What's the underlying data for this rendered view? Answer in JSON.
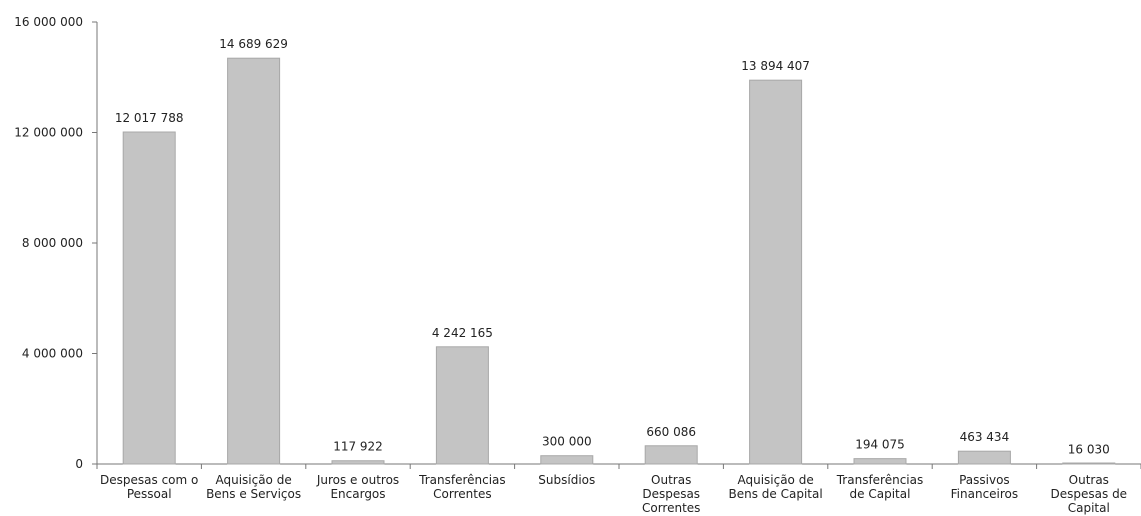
{
  "chart_data": {
    "type": "bar",
    "title": "",
    "xlabel": "",
    "ylabel": "",
    "ylim": [
      0,
      16000000
    ],
    "yticks": [
      {
        "value": 0,
        "label": "0"
      },
      {
        "value": 4000000,
        "label": "4 000 000"
      },
      {
        "value": 8000000,
        "label": "8 000 000"
      },
      {
        "value": 12000000,
        "label": "12 000 000"
      },
      {
        "value": 16000000,
        "label": "16 000 000"
      }
    ],
    "categories": [
      [
        "Despesas com o",
        "Pessoal"
      ],
      [
        "Aquisição de",
        "Bens e Serviços"
      ],
      [
        "Juros e outros",
        "Encargos"
      ],
      [
        "Transferências",
        "Correntes"
      ],
      [
        "Subsídios"
      ],
      [
        "Outras",
        "Despesas",
        "Correntes"
      ],
      [
        "Aquisição de",
        "Bens de Capital"
      ],
      [
        "Transferências",
        "de Capital"
      ],
      [
        "Passivos",
        "Financeiros"
      ],
      [
        "Outras",
        "Despesas de",
        "Capital"
      ]
    ],
    "values": [
      12017788,
      14689629,
      117922,
      4242165,
      300000,
      660086,
      13894407,
      194075,
      463434,
      16030
    ],
    "data_labels": [
      "12 017 788",
      "14 689 629",
      "117 922",
      "4 242 165",
      "300 000",
      "660 086",
      "13 894 407",
      "194 075",
      "463 434",
      "16 030"
    ],
    "grid": false,
    "legend": "none",
    "colors": {
      "bar": "#c4c4c4",
      "bar_edge": "#a8a8a8",
      "axis": "#777777",
      "text": "#222222"
    }
  }
}
